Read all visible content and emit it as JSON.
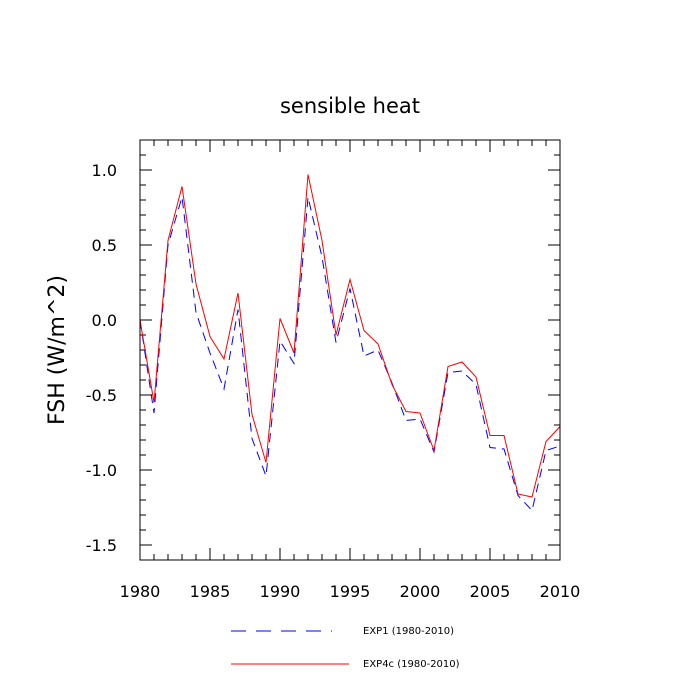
{
  "chart_data": {
    "type": "line",
    "title": "sensible heat",
    "xlabel": "",
    "ylabel": "FSH  (W/m^2)",
    "xlim": [
      1980,
      2010
    ],
    "ylim": [
      -1.6,
      1.2
    ],
    "xticks": [
      1980,
      1985,
      1990,
      1995,
      2000,
      2005,
      2010
    ],
    "xtick_labels": [
      "1980",
      "1985",
      "1990",
      "1995",
      "2000",
      "2005",
      "2010"
    ],
    "yticks": [
      -1.5,
      -1.0,
      -0.5,
      0.0,
      0.5,
      1.0
    ],
    "ytick_labels": [
      "-1.5",
      "-1.0",
      "-0.5",
      "0.0",
      "0.5",
      "1.0"
    ],
    "x": [
      1980,
      1981,
      1982,
      1983,
      1984,
      1985,
      1986,
      1987,
      1988,
      1989,
      1990,
      1991,
      1992,
      1993,
      1994,
      1995,
      1996,
      1997,
      1998,
      1999,
      2000,
      2001,
      2002,
      2003,
      2004,
      2005,
      2006,
      2007,
      2008,
      2009,
      2010
    ],
    "series": [
      {
        "name": "EXP1 (1980-2010)",
        "color": "#0000ff",
        "dash": "dashed",
        "values": [
          0.0,
          -0.62,
          0.5,
          0.82,
          0.05,
          -0.22,
          -0.46,
          0.07,
          -0.79,
          -1.04,
          -0.14,
          -0.29,
          0.82,
          0.42,
          -0.15,
          0.21,
          -0.24,
          -0.2,
          -0.42,
          -0.67,
          -0.66,
          -0.88,
          -0.35,
          -0.34,
          -0.43,
          -0.85,
          -0.86,
          -1.17,
          -1.27,
          -0.87,
          -0.84
        ]
      },
      {
        "name": "EXP4c (1980-2010)",
        "color": "#ff0000",
        "dash": "solid",
        "values": [
          0.0,
          -0.55,
          0.53,
          0.89,
          0.24,
          -0.11,
          -0.26,
          0.18,
          -0.63,
          -0.95,
          0.01,
          -0.22,
          0.97,
          0.53,
          -0.1,
          0.27,
          -0.07,
          -0.16,
          -0.43,
          -0.61,
          -0.62,
          -0.87,
          -0.31,
          -0.28,
          -0.38,
          -0.77,
          -0.77,
          -1.16,
          -1.18,
          -0.81,
          -0.71
        ]
      }
    ],
    "legend_position": "bottom-center"
  }
}
